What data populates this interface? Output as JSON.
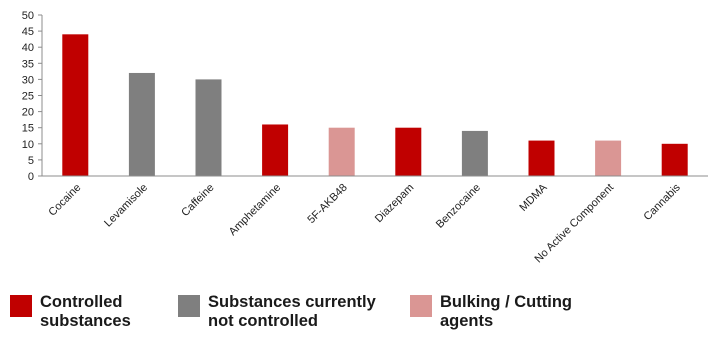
{
  "chart_data": {
    "type": "bar",
    "title": "",
    "xlabel": "",
    "ylabel": "",
    "ylim": [
      0,
      50
    ],
    "yticks": [
      0,
      5,
      10,
      15,
      20,
      25,
      30,
      35,
      40,
      45,
      50
    ],
    "grid": false,
    "legend_position": "bottom",
    "categories": [
      "Cocaine",
      "Levamisole",
      "Caffeine",
      "Amphetamine",
      "5F-AKB48",
      "Diazepam",
      "Benzocaine",
      "MDMA",
      "No Active Component",
      "Cannabis"
    ],
    "values": [
      44,
      32,
      30,
      16,
      15,
      15,
      14,
      11,
      11,
      10
    ],
    "groups": [
      "controlled",
      "not_controlled",
      "not_controlled",
      "controlled",
      "bulking",
      "controlled",
      "not_controlled",
      "controlled",
      "bulking",
      "controlled"
    ]
  },
  "legend": [
    {
      "key": "controlled",
      "label": "Controlled\nsubstances",
      "color": "#c00000"
    },
    {
      "key": "not_controlled",
      "label": "Substances currently\nnot controlled",
      "color": "#7f7f7f"
    },
    {
      "key": "bulking",
      "label": "Bulking / Cutting\nagents",
      "color": "#da9694"
    }
  ]
}
